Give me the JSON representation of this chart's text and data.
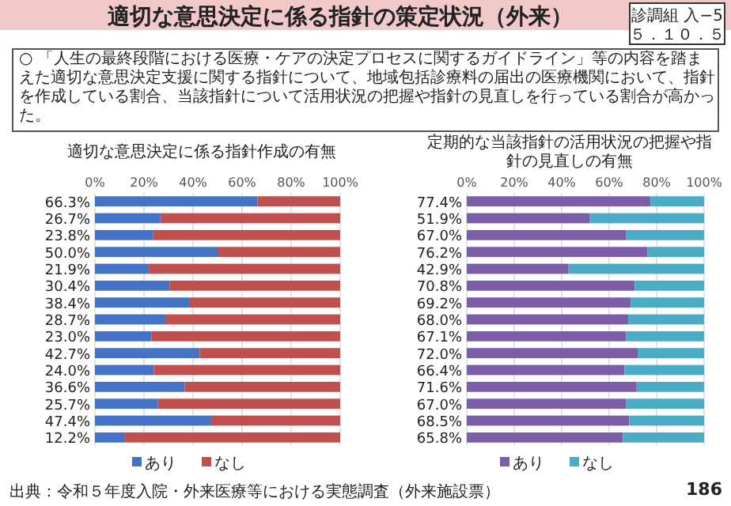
{
  "chart_data": [
    {
      "type": "other",
      "title": "適切な意思決定に係る指針の策定状況（外来）",
      "annotations": [
        "診調組 入−5\n５．１０．５",
        "○ 「人生の最終段階における医療・ケアの決定プロセスに関するガイドライン」等の内容を踏まえた適切な意思決定支援に関する指針について、地域包括診療料の届出の医療機関において、指針を作成している割合、当該指針について活用状況の把握や指針の見直しを行っている割合が高かった。",
        "出典：令和５年度入院・外来医療等における実態調査（外来施設票）",
        "186"
      ]
    },
    {
      "type": "bar",
      "orientation": "horizontal",
      "stacked": true,
      "title": "適切な意思決定に係る指針作成の有無",
      "categories": [
        null,
        null,
        null,
        null,
        null,
        null,
        null,
        null,
        null,
        null,
        null,
        null,
        null,
        null,
        null
      ],
      "xlim": [
        0,
        100
      ],
      "xticks": [
        {
          "value": 0,
          "label": "0%"
        },
        {
          "value": 20,
          "label": "20%"
        },
        {
          "value": 40,
          "label": "40%"
        },
        {
          "value": 60,
          "label": "60%"
        },
        {
          "value": 80,
          "label": "80%"
        },
        {
          "value": 100,
          "label": "100%"
        }
      ],
      "grid": "x",
      "legend": "bottom",
      "series": [
        {
          "name": "あり",
          "color": "#4472c4",
          "values": [
            66.3,
            26.7,
            23.8,
            50.0,
            21.9,
            30.4,
            38.4,
            28.7,
            23.0,
            42.7,
            24.0,
            36.6,
            25.7,
            47.4,
            12.2
          ],
          "value_labels": [
            "66.3%",
            "26.7%",
            "23.8%",
            "50.0%",
            "21.9%",
            "30.4%",
            "38.4%",
            "28.7%",
            "23.0%",
            "42.7%",
            "24.0%",
            "36.6%",
            "25.7%",
            "47.4%",
            "12.2%"
          ]
        },
        {
          "name": "なし",
          "color": "#c0504d",
          "values": [
            33.7,
            73.3,
            76.2,
            50.0,
            78.1,
            69.6,
            61.6,
            71.3,
            77.0,
            57.3,
            76.0,
            63.4,
            74.3,
            52.6,
            87.8
          ]
        }
      ]
    },
    {
      "type": "bar",
      "orientation": "horizontal",
      "stacked": true,
      "title": "定期的な当該指針の活用状況の把握や指針の見直しの有無",
      "categories": [
        null,
        null,
        null,
        null,
        null,
        null,
        null,
        null,
        null,
        null,
        null,
        null,
        null,
        null,
        null
      ],
      "xlim": [
        0,
        100
      ],
      "xticks": [
        {
          "value": 0,
          "label": "0%"
        },
        {
          "value": 20,
          "label": "20%"
        },
        {
          "value": 40,
          "label": "40%"
        },
        {
          "value": 60,
          "label": "60%"
        },
        {
          "value": 80,
          "label": "80%"
        },
        {
          "value": 100,
          "label": "100%"
        }
      ],
      "grid": "x",
      "legend": "bottom",
      "series": [
        {
          "name": "あり",
          "color": "#7b5ea7",
          "values": [
            77.4,
            51.9,
            67.0,
            76.2,
            42.9,
            70.8,
            69.2,
            68.0,
            67.1,
            72.0,
            66.4,
            71.6,
            67.0,
            68.5,
            65.8
          ],
          "value_labels": [
            "77.4%",
            "51.9%",
            "67.0%",
            "76.2%",
            "42.9%",
            "70.8%",
            "69.2%",
            "68.0%",
            "67.1%",
            "72.0%",
            "66.4%",
            "71.6%",
            "67.0%",
            "68.5%",
            "65.8%"
          ]
        },
        {
          "name": "なし",
          "color": "#4bacc6",
          "values": [
            22.6,
            48.1,
            33.0,
            23.8,
            57.1,
            29.2,
            30.8,
            32.0,
            32.9,
            28.0,
            33.6,
            28.4,
            33.0,
            31.5,
            34.2
          ]
        }
      ]
    }
  ]
}
